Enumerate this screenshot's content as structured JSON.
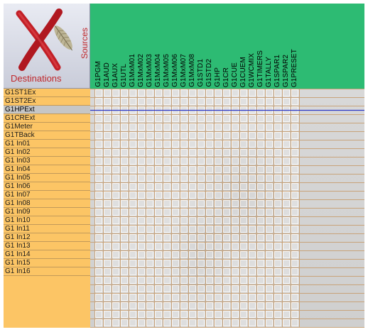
{
  "corner": {
    "logo_icon": "x-feather-logo-icon",
    "sources_label": "Sources",
    "destinations_label": "Destinations"
  },
  "sources": [
    "G1PGM",
    "G1AUD",
    "G1AUX",
    "G1UTL",
    "G1MxM01",
    "G1MxM02",
    "G1MxM03",
    "G1MxM04",
    "G1MxM05",
    "G1MxM06",
    "G1MxM07",
    "G1MxM08",
    "G1STD1",
    "G1STD2",
    "G1HP",
    "G1CR",
    "G1CUE",
    "G1CUEM",
    "G1WCMIX",
    "G1TIMERS",
    "G1TALLY",
    "G1SPAR1",
    "G1SPAR2",
    "G1PRESET"
  ],
  "destinations": [
    "G1ST1Ex",
    "G1ST2Ex",
    "G1HPExt",
    "G1CRExt",
    "G1Meter",
    "G1TBack",
    "G1 In01",
    "G1 In02",
    "G1 In03",
    "G1 In04",
    "G1 In05",
    "G1 In06",
    "G1 In07",
    "G1 In08",
    "G1 In09",
    "G1 In10",
    "G1 In11",
    "G1 In12",
    "G1 In13",
    "G1 In14",
    "G1 In15",
    "G1 In16"
  ],
  "selected_destination": "G1HPExt",
  "colors": {
    "sources_header": "#2dbb73",
    "destinations_bg": "#fcc565",
    "selected_row": "#c6c6c6",
    "grid_cell": "#e4e4e4",
    "grid_line": "#c8a37a",
    "selection_line": "#2a36c8",
    "label_red": "#c0282c"
  }
}
